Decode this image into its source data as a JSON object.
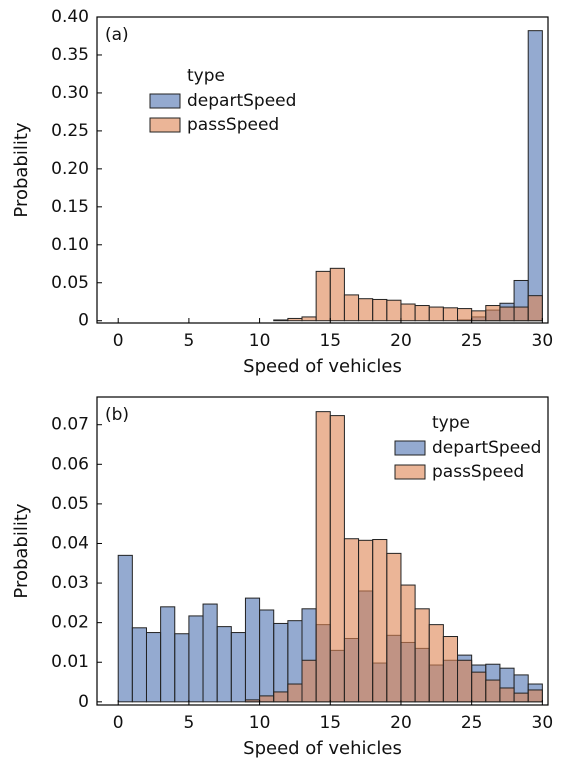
{
  "chart_data": [
    {
      "type": "histogram",
      "annotation": "(a)",
      "xlabel": "Speed of vehicles",
      "ylabel": "Probability",
      "legend_title": "type",
      "legend": "upper left",
      "bins": [
        0,
        1,
        2,
        3,
        4,
        5,
        6,
        7,
        8,
        9,
        10,
        11,
        12,
        13,
        14,
        15,
        16,
        17,
        18,
        19,
        20,
        21,
        22,
        23,
        24,
        25,
        26,
        27,
        28,
        29,
        30
      ],
      "series": [
        {
          "name": "departSpeed",
          "color": "#4c72b0",
          "values": [
            0,
            0,
            0,
            0,
            0,
            0,
            0,
            0,
            0,
            0,
            0,
            0,
            0,
            0,
            0,
            0,
            0,
            0,
            0,
            0,
            0,
            0,
            0,
            0,
            0.001,
            0.005,
            0.014,
            0.023,
            0.053,
            0.382
          ]
        },
        {
          "name": "passSpeed",
          "color": "#dd8452",
          "values": [
            0,
            0,
            0,
            0,
            0,
            0,
            0,
            0,
            0,
            0,
            0,
            0.001,
            0.003,
            0.005,
            0.065,
            0.069,
            0.034,
            0.029,
            0.028,
            0.027,
            0.022,
            0.02,
            0.018,
            0.017,
            0.016,
            0.013,
            0.02,
            0.018,
            0.018,
            0.033
          ]
        }
      ],
      "xlim": [
        -1.5,
        30.4
      ],
      "ylim": [
        -0.003,
        0.4
      ],
      "xticks": [
        0,
        5,
        10,
        15,
        20,
        25,
        30
      ],
      "yticks": [
        0,
        0.05,
        {
          "value": 0.1,
          "label": "0.10"
        },
        0.15,
        {
          "value": 0.2,
          "label": "0.20"
        },
        0.25,
        {
          "value": 0.3,
          "label": "0.30"
        },
        0.35,
        {
          "value": 0.4,
          "label": "0.40"
        }
      ]
    },
    {
      "type": "histogram",
      "annotation": "(b)",
      "xlabel": "Speed of vehicles",
      "ylabel": "Probability",
      "legend_title": "type",
      "legend": "upper right",
      "bins": [
        0,
        1,
        2,
        3,
        4,
        5,
        6,
        7,
        8,
        9,
        10,
        11,
        12,
        13,
        14,
        15,
        16,
        17,
        18,
        19,
        20,
        21,
        22,
        23,
        24,
        25,
        26,
        27,
        28,
        29,
        30
      ],
      "series": [
        {
          "name": "departSpeed",
          "color": "#4c72b0",
          "values": [
            0.037,
            0.0187,
            0.0175,
            0.024,
            0.0172,
            0.0217,
            0.0247,
            0.019,
            0.0175,
            0.0262,
            0.0232,
            0.0198,
            0.0205,
            0.0235,
            0.0195,
            0.013,
            0.016,
            0.028,
            0.0098,
            0.0168,
            0.015,
            0.0135,
            0.0093,
            0.0105,
            0.0118,
            0.0093,
            0.0095,
            0.0085,
            0.0068,
            0.0045
          ]
        },
        {
          "name": "passSpeed",
          "color": "#dd8452",
          "values": [
            0,
            0,
            0,
            0,
            0,
            0,
            0,
            0,
            0,
            0.0005,
            0.0015,
            0.0025,
            0.0045,
            0.0105,
            0.0733,
            0.0723,
            0.0412,
            0.0408,
            0.041,
            0.0375,
            0.0295,
            0.0235,
            0.0195,
            0.0165,
            0.0105,
            0.0075,
            0.0055,
            0.0035,
            0.0022,
            0.003
          ]
        }
      ],
      "xlim": [
        -1.5,
        30.4
      ],
      "ylim": [
        -0.0008,
        0.077
      ],
      "xticks": [
        0,
        5,
        10,
        15,
        20,
        25,
        30
      ],
      "yticks": [
        0,
        0.01,
        0.02,
        0.03,
        0.04,
        0.05,
        0.06,
        0.07
      ]
    }
  ]
}
